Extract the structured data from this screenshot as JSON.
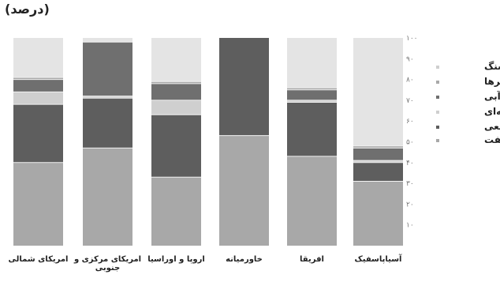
{
  "unit_label": "(درصد)",
  "colors": {
    "coal": "#e4e4e4",
    "renewables": "#a9a9a9",
    "hydro": "#6f6f6f",
    "nuclear": "#cfcfcf",
    "gas": "#5e5e5e",
    "oil": "#a8a8a8",
    "separator": "#f2f2f2"
  },
  "chart_data": {
    "type": "bar",
    "stacked": true,
    "title": "",
    "ylabel": "(درصد)",
    "xlabel": "",
    "ylim": [
      0,
      100
    ],
    "yticks": [
      "۱۰",
      "۲۰",
      "۳۰",
      "۴۰",
      "۵۰",
      "۶۰",
      "۷۰",
      "۸۰",
      "۹۰",
      "۱۰۰"
    ],
    "ytick_values": [
      10,
      20,
      30,
      40,
      50,
      60,
      70,
      80,
      90,
      100
    ],
    "grid": false,
    "legend_position": "right",
    "categories": [
      [
        "امریکای شمالی"
      ],
      [
        "امریکای مرکزی و",
        "جنوبی"
      ],
      [
        "اروپا و اوراسیا"
      ],
      [
        "خاورمیانه"
      ],
      [
        "افریقا"
      ],
      [
        "آسیاپاسفیک"
      ]
    ],
    "series": [
      {
        "name": "نفت",
        "color_key": "oil",
        "values": [
          40,
          47,
          33,
          53,
          43,
          31
        ]
      },
      {
        "name": "گاز طبیعی",
        "color_key": "gas",
        "values": [
          28,
          24,
          30,
          47,
          26,
          9
        ]
      },
      {
        "name": "برق هسته‌ای",
        "color_key": "nuclear",
        "values": [
          6,
          1,
          7,
          0,
          1,
          1
        ]
      },
      {
        "name": "برق آبی",
        "color_key": "hydro",
        "values": [
          6,
          26,
          8,
          0,
          5,
          6
        ]
      },
      {
        "name": "تجدیدپذیرها",
        "color_key": "renewables",
        "values": [
          1,
          0,
          1,
          0,
          1,
          1
        ]
      },
      {
        "name": "زغال‌سنگ",
        "color_key": "coal",
        "values": [
          19,
          2,
          21,
          0,
          24,
          52
        ]
      }
    ],
    "legend_order": [
      "زغال‌سنگ",
      "تجدیدپذیرها",
      "برق آبی",
      "برق هسته‌ای",
      "گاز طبیعی",
      "نفت"
    ]
  }
}
